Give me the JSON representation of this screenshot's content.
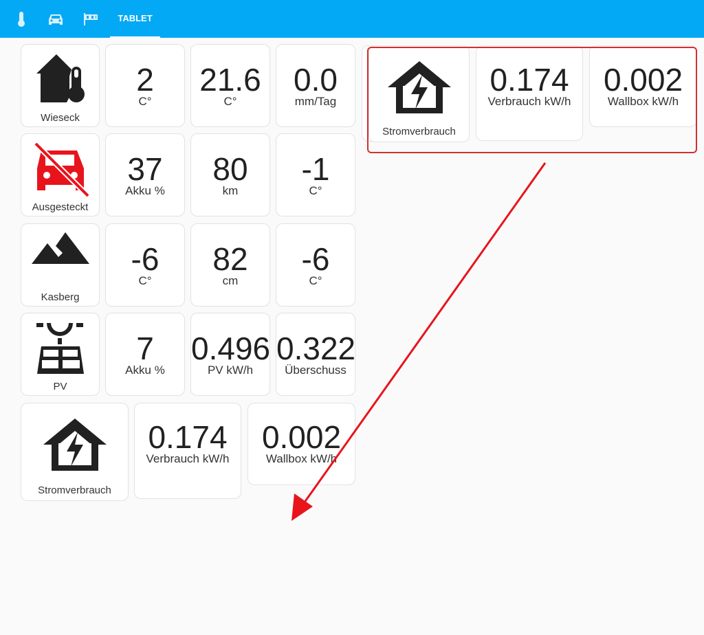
{
  "header": {
    "tabs": [
      {
        "icon": "thermometer-icon"
      },
      {
        "icon": "car-icon"
      },
      {
        "icon": "windsock-icon"
      },
      {
        "label": "TABLET",
        "active": true
      }
    ]
  },
  "colors": {
    "header": "#03a9f4",
    "alert_icon": "#e8141c",
    "highlight": "#d32f2f"
  },
  "rows": [
    {
      "name": "Wieseck",
      "icon": "home-thermometer-icon",
      "tiles": [
        {
          "value": "2",
          "unit": "C°"
        },
        {
          "value": "21.6",
          "unit": "C°"
        },
        {
          "value": "0.0",
          "unit": "mm/Tag"
        }
      ]
    },
    {
      "name": "Ausgesteckt",
      "icon": "car-off-icon",
      "tiles": [
        {
          "value": "37",
          "unit": "Akku %"
        },
        {
          "value": "80",
          "unit": "km"
        },
        {
          "value": "-1",
          "unit": "C°"
        }
      ]
    },
    {
      "name": "Kasberg",
      "icon": "mountain-icon",
      "tiles": [
        {
          "value": "-6",
          "unit": "C°"
        },
        {
          "value": "82",
          "unit": "cm"
        },
        {
          "value": "-6",
          "unit": "C°"
        }
      ]
    },
    {
      "name": "PV",
      "icon": "solar-panel-icon",
      "tiles": [
        {
          "value": "7",
          "unit": "Akku %"
        },
        {
          "value": "0.496",
          "unit": "PV kW/h"
        },
        {
          "value": "0.322",
          "unit": "Überschuss"
        }
      ]
    },
    {
      "name": "Stromverbrauch",
      "icon": "home-lightning-icon",
      "tiles": [
        {
          "value": "0.174",
          "unit": "Verbrauch kW/h"
        },
        {
          "value": "0.002",
          "unit": "Wallbox kW/h"
        }
      ]
    }
  ],
  "highlight": {
    "name": "Stromverbrauch",
    "icon": "home-lightning-icon",
    "tiles": [
      {
        "value": "0.174",
        "unit": "Verbrauch kW/h"
      },
      {
        "value": "0.002",
        "unit": "Wallbox kW/h"
      }
    ]
  }
}
